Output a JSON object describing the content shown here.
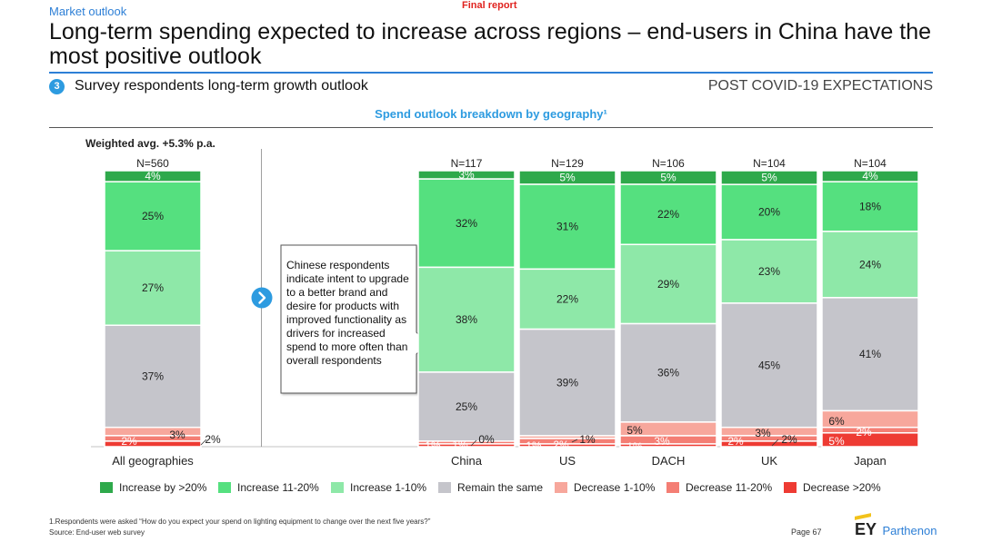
{
  "header": {
    "section_label": "Market outlook",
    "final_report": "Final report",
    "title": "Long-term spending expected to increase across regions – end-users in China have the most positive outlook",
    "step_number": "3",
    "subtitle": "Survey respondents long-term growth outlook",
    "expectations_label": "POST COVID-19 EXPECTATIONS",
    "accent_color": "#2d7fd6"
  },
  "chart_title": "Spend outlook breakdown by geography¹",
  "weighted_avg": "Weighted avg. +5.3% p.a.",
  "callout": "Chinese respondents indicate intent to upgrade to a better brand and desire for products with improved functionality as drivers for increased spend to more often than overall respondents",
  "chart_data": {
    "type": "bar",
    "stacked": true,
    "normalized": true,
    "categories": [
      "All geographies",
      "China",
      "US",
      "DACH",
      "UK",
      "Japan"
    ],
    "n_labels": [
      "N=560",
      "N=117",
      "N=129",
      "N=106",
      "N=104",
      "N=104"
    ],
    "series": [
      {
        "name": "Increase by >20%",
        "color": "#2ea94b",
        "values": [
          4,
          3,
          5,
          5,
          5,
          4
        ]
      },
      {
        "name": "Increase 11-20%",
        "color": "#55e07f",
        "values": [
          25,
          32,
          31,
          22,
          20,
          18
        ]
      },
      {
        "name": "Increase 1-10%",
        "color": "#8ee8a8",
        "values": [
          27,
          38,
          22,
          29,
          23,
          24
        ]
      },
      {
        "name": "Remain the same",
        "color": "#c5c5cb",
        "values": [
          37,
          25,
          39,
          36,
          45,
          41
        ]
      },
      {
        "name": "Decrease 1-10%",
        "color": "#f7a79c",
        "values": [
          3,
          0,
          1,
          5,
          3,
          6
        ]
      },
      {
        "name": "Decrease 11-20%",
        "color": "#f47e74",
        "values": [
          2,
          1,
          2,
          3,
          2,
          2
        ]
      },
      {
        "name": "Decrease >20%",
        "color": "#ee3b33",
        "values": [
          2,
          1,
          1,
          1,
          2,
          5
        ]
      }
    ],
    "ylim": [
      0,
      100
    ]
  },
  "footer": {
    "footnote": "1.Respondents were asked “How do you expect your spend on lighting equipment to change over the next five years?”",
    "source": "Source: End-user web survey",
    "page": "Page 67",
    "logo_ey": "EY",
    "logo_brand": "Parthenon"
  }
}
